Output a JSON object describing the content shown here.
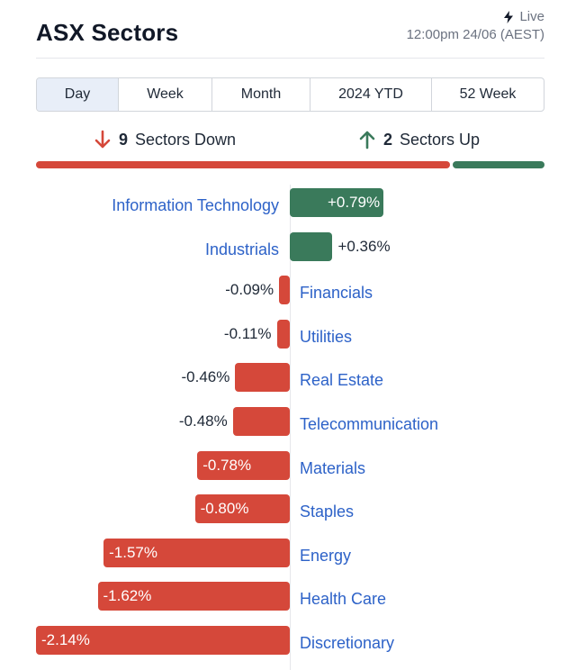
{
  "header": {
    "title": "ASX Sectors",
    "live_label": "Live",
    "timestamp": "12:00pm 24/06 (AEST)"
  },
  "tabs": [
    {
      "label": "Day",
      "active": true
    },
    {
      "label": "Week",
      "active": false
    },
    {
      "label": "Month",
      "active": false
    },
    {
      "label": "2024 YTD",
      "active": false
    },
    {
      "label": "52 Week",
      "active": false
    }
  ],
  "summary": {
    "down_count": "9",
    "down_label": "Sectors Down",
    "up_count": "2",
    "up_label": "Sectors Up"
  },
  "colors": {
    "up": "#3a7a5b",
    "down": "#d5483a",
    "link": "#2d62c8"
  },
  "chart_data": {
    "type": "bar",
    "orientation": "horizontal",
    "categories": [
      "Information Technology",
      "Industrials",
      "Financials",
      "Utilities",
      "Real Estate",
      "Telecommunication",
      "Materials",
      "Staples",
      "Energy",
      "Health Care",
      "Discretionary"
    ],
    "values": [
      0.79,
      0.36,
      -0.09,
      -0.11,
      -0.46,
      -0.48,
      -0.78,
      -0.8,
      -1.57,
      -1.62,
      -2.14
    ],
    "labels": [
      "+0.79%",
      "+0.36%",
      "-0.09%",
      "-0.11%",
      "-0.46%",
      "-0.48%",
      "-0.78%",
      "-0.80%",
      "-1.57%",
      "-1.62%",
      "-2.14%"
    ],
    "unit": "%",
    "xlim": [
      -2.14,
      2.14
    ]
  }
}
